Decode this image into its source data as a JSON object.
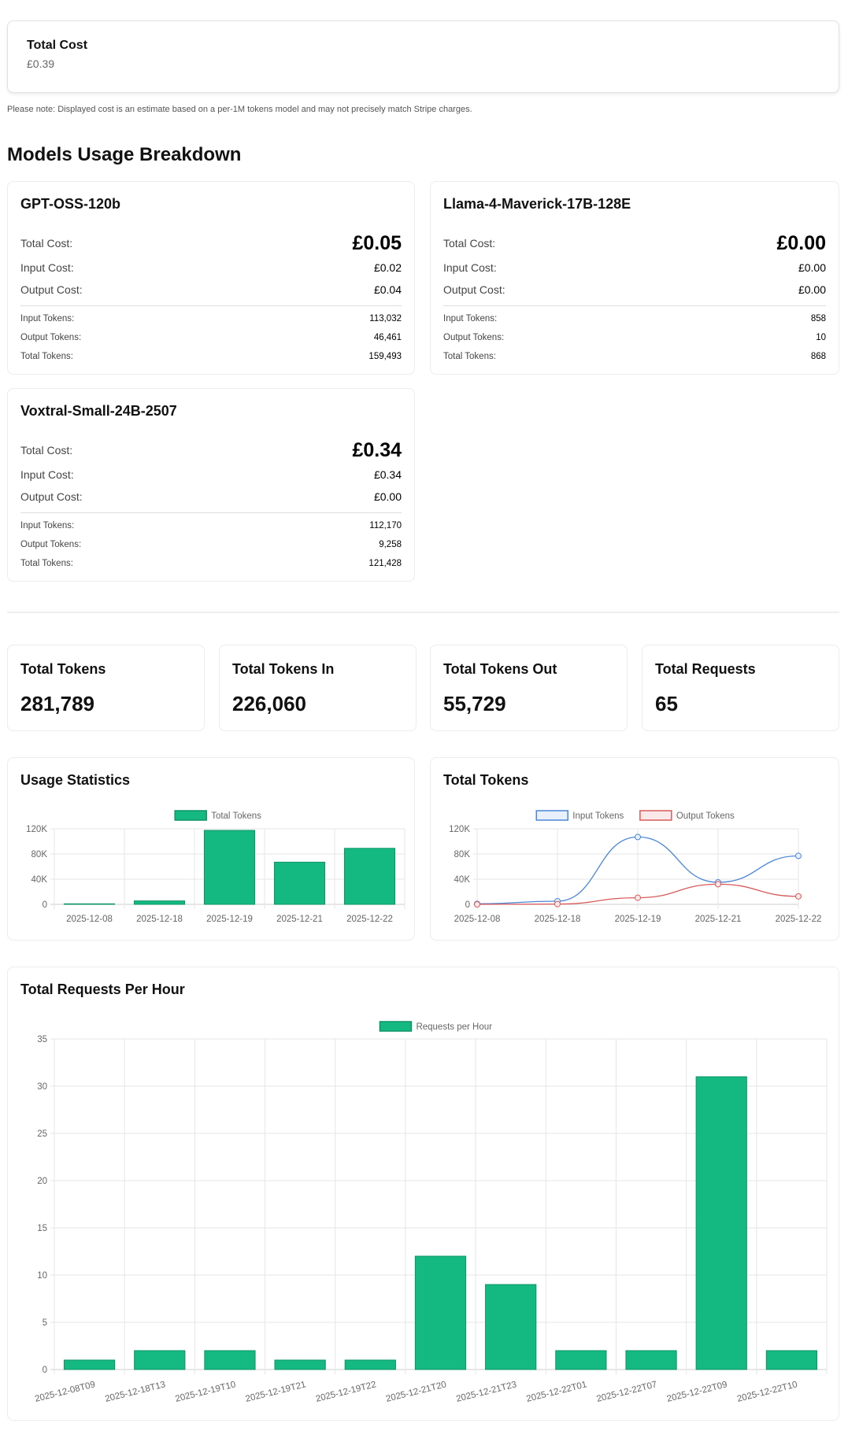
{
  "total_cost": {
    "label": "Total Cost",
    "value": "£0.39"
  },
  "note": "Please note: Displayed cost is an estimate based on a per-1M tokens model and may not precisely match Stripe charges.",
  "breakdown_title": "Models Usage Breakdown",
  "labels": {
    "total_cost": "Total Cost:",
    "input_cost": "Input Cost:",
    "output_cost": "Output Cost:",
    "input_tokens": "Input Tokens:",
    "output_tokens": "Output Tokens:",
    "total_tokens": "Total Tokens:"
  },
  "models": [
    {
      "name": "GPT-OSS-120b",
      "total_cost": "£0.05",
      "input_cost": "£0.02",
      "output_cost": "£0.04",
      "input_tokens": "113,032",
      "output_tokens": "46,461",
      "total_tokens": "159,493"
    },
    {
      "name": "Llama-4-Maverick-17B-128E",
      "total_cost": "£0.00",
      "input_cost": "£0.00",
      "output_cost": "£0.00",
      "input_tokens": "858",
      "output_tokens": "10",
      "total_tokens": "868"
    },
    {
      "name": "Voxtral-Small-24B-2507",
      "total_cost": "£0.34",
      "input_cost": "£0.34",
      "output_cost": "£0.00",
      "input_tokens": "112,170",
      "output_tokens": "9,258",
      "total_tokens": "121,428"
    }
  ],
  "stats": [
    {
      "label": "Total Tokens",
      "value": "281,789"
    },
    {
      "label": "Total Tokens In",
      "value": "226,060"
    },
    {
      "label": "Total Tokens Out",
      "value": "55,729"
    },
    {
      "label": "Total Requests",
      "value": "65"
    }
  ],
  "colors": {
    "bar": "#14b981",
    "bar_border": "#0e9466",
    "input": "#4a86d8",
    "output": "#d85a5a"
  },
  "chart_data": [
    {
      "type": "bar",
      "title": "Usage Statistics",
      "categories": [
        "2025-12-08",
        "2025-12-18",
        "2025-12-19",
        "2025-12-21",
        "2025-12-22"
      ],
      "series": [
        {
          "name": "Total Tokens",
          "values": [
            868,
            5500,
            117500,
            67000,
            89000
          ]
        }
      ],
      "yticks": [
        "0",
        "40K",
        "80K",
        "120K"
      ],
      "ylim": [
        0,
        120000
      ],
      "grid": true,
      "legend": "top"
    },
    {
      "type": "line",
      "title": "Total Tokens",
      "categories": [
        "2025-12-08",
        "2025-12-18",
        "2025-12-19",
        "2025-12-21",
        "2025-12-22"
      ],
      "series": [
        {
          "name": "Input Tokens",
          "values": [
            858,
            5000,
            107000,
            35000,
            77000
          ]
        },
        {
          "name": "Output Tokens",
          "values": [
            10,
            500,
            10500,
            32000,
            12700
          ]
        }
      ],
      "yticks": [
        "0",
        "40K",
        "80K",
        "120K"
      ],
      "ylim": [
        0,
        120000
      ],
      "grid": true,
      "legend": "top"
    },
    {
      "type": "bar",
      "title": "Total Requests Per Hour",
      "categories": [
        "2025-12-08T09",
        "2025-12-18T13",
        "2025-12-19T10",
        "2025-12-19T21",
        "2025-12-19T22",
        "2025-12-21T20",
        "2025-12-21T23",
        "2025-12-22T01",
        "2025-12-22T07",
        "2025-12-22T09",
        "2025-12-22T10"
      ],
      "series": [
        {
          "name": "Requests per Hour",
          "values": [
            1,
            2,
            2,
            1,
            1,
            12,
            9,
            2,
            2,
            31,
            2
          ]
        }
      ],
      "yticks": [
        "0",
        "5",
        "10",
        "15",
        "20",
        "25",
        "30",
        "35"
      ],
      "ylim": [
        0,
        35
      ],
      "grid": true,
      "legend": "top"
    }
  ]
}
